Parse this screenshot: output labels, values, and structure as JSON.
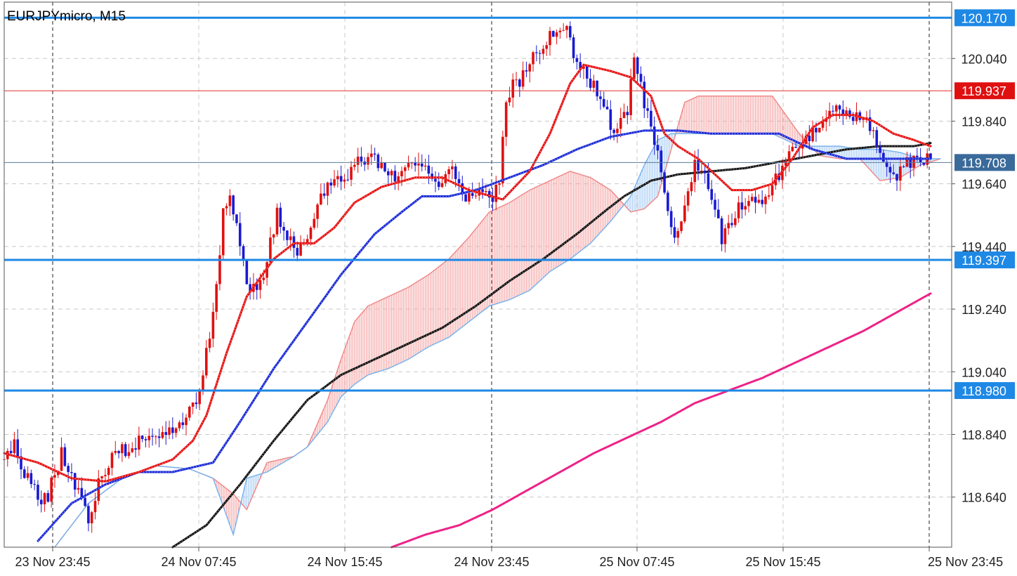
{
  "header": {
    "symbol_timeframe": "EURJPYmicro, M15"
  },
  "colors": {
    "bull_candle": "#e01010",
    "bear_candle": "#1a1ad0",
    "ema_fast": "#e81010",
    "ema_mid": "#1a2ad8",
    "ema_slow": "#111111",
    "ema_long": "#ee2288",
    "cloud_bull": "#f5a8a8",
    "cloud_bear": "#a8cdf5",
    "hline": "#1e88e5",
    "price_line": "#e03030",
    "bid_line": "#5a7a9a"
  },
  "chart_data": {
    "type": "candlestick",
    "symbol": "EURJPYmicro",
    "timeframe": "M15",
    "y_range": [
      118.48,
      120.22
    ],
    "y_ticks": [
      "120.040",
      "119.840",
      "119.640",
      "119.440",
      "119.240",
      "119.040",
      "118.840",
      "118.640"
    ],
    "x_ticks": [
      "23 Nov 23:45",
      "24 Nov 07:45",
      "24 Nov 15:45",
      "24 Nov 23:45",
      "25 Nov 07:45",
      "25 Nov 15:45",
      "25 Nov 23:45"
    ],
    "grid": true,
    "horizontal_levels": [
      {
        "label": "120.170",
        "value": 120.17
      },
      {
        "label": "119.397",
        "value": 119.397
      },
      {
        "label": "118.980",
        "value": 118.98
      }
    ],
    "current_price": {
      "label": "119.937",
      "value": 119.937
    },
    "bid_price": {
      "label": "119.708",
      "value": 119.708
    },
    "anchors": [
      [
        0,
        118.76
      ],
      [
        4,
        118.8
      ],
      [
        8,
        118.7
      ],
      [
        12,
        118.62
      ],
      [
        14,
        118.65
      ],
      [
        18,
        118.78
      ],
      [
        20,
        118.72
      ],
      [
        24,
        118.64
      ],
      [
        26,
        118.56
      ],
      [
        30,
        118.72
      ],
      [
        34,
        118.77
      ],
      [
        38,
        118.8
      ],
      [
        42,
        118.82
      ],
      [
        46,
        118.84
      ],
      [
        50,
        118.85
      ],
      [
        54,
        118.88
      ],
      [
        58,
        118.95
      ],
      [
        62,
        119.15
      ],
      [
        64,
        119.3
      ],
      [
        66,
        119.55
      ],
      [
        68,
        119.6
      ],
      [
        70,
        119.5
      ],
      [
        74,
        119.28
      ],
      [
        78,
        119.35
      ],
      [
        82,
        119.55
      ],
      [
        84,
        119.48
      ],
      [
        86,
        119.45
      ],
      [
        88,
        119.4
      ],
      [
        90,
        119.45
      ],
      [
        94,
        119.58
      ],
      [
        98,
        119.65
      ],
      [
        102,
        119.65
      ],
      [
        106,
        119.72
      ],
      [
        110,
        119.72
      ],
      [
        114,
        119.68
      ],
      [
        118,
        119.65
      ],
      [
        122,
        119.7
      ],
      [
        126,
        119.68
      ],
      [
        130,
        119.65
      ],
      [
        134,
        119.7
      ],
      [
        138,
        119.6
      ],
      [
        140,
        119.58
      ],
      [
        142,
        119.6
      ],
      [
        146,
        119.6
      ],
      [
        148,
        119.65
      ],
      [
        150,
        119.9
      ],
      [
        152,
        119.95
      ],
      [
        154,
        119.97
      ],
      [
        158,
        120.05
      ],
      [
        162,
        120.1
      ],
      [
        166,
        120.12
      ],
      [
        168,
        120.15
      ],
      [
        170,
        120.02
      ],
      [
        174,
        119.98
      ],
      [
        178,
        119.92
      ],
      [
        182,
        119.8
      ],
      [
        186,
        119.88
      ],
      [
        188,
        120.05
      ],
      [
        190,
        119.95
      ],
      [
        194,
        119.75
      ],
      [
        196,
        119.7
      ],
      [
        198,
        119.55
      ],
      [
        200,
        119.45
      ],
      [
        204,
        119.62
      ],
      [
        206,
        119.7
      ],
      [
        208,
        119.68
      ],
      [
        210,
        119.62
      ],
      [
        212,
        119.58
      ],
      [
        214,
        119.45
      ],
      [
        216,
        119.5
      ],
      [
        218,
        119.55
      ],
      [
        222,
        119.6
      ],
      [
        226,
        119.58
      ],
      [
        230,
        119.65
      ],
      [
        234,
        119.72
      ],
      [
        238,
        119.78
      ],
      [
        242,
        119.8
      ],
      [
        246,
        119.85
      ],
      [
        248,
        119.88
      ],
      [
        250,
        119.85
      ],
      [
        254,
        119.85
      ],
      [
        258,
        119.82
      ],
      [
        262,
        119.7
      ],
      [
        266,
        119.65
      ],
      [
        268,
        119.7
      ],
      [
        272,
        119.72
      ],
      [
        275,
        119.72
      ]
    ],
    "ema_fast_anchors": [
      [
        0,
        118.78
      ],
      [
        10,
        118.75
      ],
      [
        20,
        118.7
      ],
      [
        30,
        118.69
      ],
      [
        40,
        118.72
      ],
      [
        50,
        118.76
      ],
      [
        56,
        118.82
      ],
      [
        60,
        118.9
      ],
      [
        66,
        119.1
      ],
      [
        72,
        119.28
      ],
      [
        80,
        119.4
      ],
      [
        86,
        119.45
      ],
      [
        92,
        119.45
      ],
      [
        98,
        119.5
      ],
      [
        104,
        119.58
      ],
      [
        112,
        119.63
      ],
      [
        122,
        119.66
      ],
      [
        130,
        119.66
      ],
      [
        138,
        119.62
      ],
      [
        148,
        119.59
      ],
      [
        156,
        119.68
      ],
      [
        162,
        119.8
      ],
      [
        168,
        119.96
      ],
      [
        172,
        120.02
      ],
      [
        180,
        120.0
      ],
      [
        186,
        119.98
      ],
      [
        192,
        119.92
      ],
      [
        196,
        119.8
      ],
      [
        200,
        119.76
      ],
      [
        206,
        119.72
      ],
      [
        212,
        119.66
      ],
      [
        216,
        119.62
      ],
      [
        222,
        119.62
      ],
      [
        228,
        119.64
      ],
      [
        234,
        119.72
      ],
      [
        240,
        119.82
      ],
      [
        246,
        119.86
      ],
      [
        252,
        119.86
      ],
      [
        258,
        119.84
      ],
      [
        264,
        119.8
      ],
      [
        270,
        119.78
      ],
      [
        275,
        119.76
      ]
    ],
    "ema_mid_anchors": [
      [
        10,
        118.5
      ],
      [
        20,
        118.62
      ],
      [
        30,
        118.68
      ],
      [
        40,
        118.72
      ],
      [
        50,
        118.72
      ],
      [
        62,
        118.75
      ],
      [
        70,
        118.88
      ],
      [
        80,
        119.05
      ],
      [
        90,
        119.2
      ],
      [
        100,
        119.35
      ],
      [
        110,
        119.48
      ],
      [
        118,
        119.55
      ],
      [
        124,
        119.6
      ],
      [
        132,
        119.6
      ],
      [
        140,
        119.62
      ],
      [
        150,
        119.66
      ],
      [
        160,
        119.7
      ],
      [
        170,
        119.75
      ],
      [
        180,
        119.79
      ],
      [
        190,
        119.81
      ],
      [
        200,
        119.81
      ],
      [
        210,
        119.8
      ],
      [
        220,
        119.8
      ],
      [
        230,
        119.8
      ],
      [
        240,
        119.75
      ],
      [
        250,
        119.72
      ],
      [
        262,
        119.72
      ],
      [
        275,
        119.72
      ]
    ],
    "ema_slow_anchors": [
      [
        50,
        118.48
      ],
      [
        60,
        118.55
      ],
      [
        70,
        118.68
      ],
      [
        80,
        118.82
      ],
      [
        90,
        118.95
      ],
      [
        100,
        119.03
      ],
      [
        110,
        119.08
      ],
      [
        120,
        119.13
      ],
      [
        130,
        119.18
      ],
      [
        140,
        119.25
      ],
      [
        150,
        119.33
      ],
      [
        160,
        119.4
      ],
      [
        170,
        119.48
      ],
      [
        178,
        119.55
      ],
      [
        184,
        119.6
      ],
      [
        192,
        119.65
      ],
      [
        200,
        119.67
      ],
      [
        210,
        119.68
      ],
      [
        220,
        119.69
      ],
      [
        230,
        119.71
      ],
      [
        240,
        119.73
      ],
      [
        250,
        119.75
      ],
      [
        260,
        119.76
      ],
      [
        270,
        119.76
      ],
      [
        275,
        119.77
      ]
    ],
    "ema_long_anchors": [
      [
        115,
        118.48
      ],
      [
        125,
        118.52
      ],
      [
        135,
        118.55
      ],
      [
        145,
        118.6
      ],
      [
        155,
        118.66
      ],
      [
        165,
        118.72
      ],
      [
        175,
        118.78
      ],
      [
        185,
        118.83
      ],
      [
        195,
        118.88
      ],
      [
        205,
        118.94
      ],
      [
        215,
        118.98
      ],
      [
        225,
        119.02
      ],
      [
        235,
        119.07
      ],
      [
        245,
        119.12
      ],
      [
        255,
        119.17
      ],
      [
        265,
        119.23
      ],
      [
        275,
        119.29
      ]
    ],
    "cloud_span_a_anchors": [
      [
        15,
        118.48
      ],
      [
        25,
        118.62
      ],
      [
        35,
        118.7
      ],
      [
        45,
        118.74
      ],
      [
        55,
        118.73
      ],
      [
        62,
        118.7
      ],
      [
        68,
        118.65
      ],
      [
        72,
        118.6
      ],
      [
        78,
        118.75
      ],
      [
        86,
        118.77
      ],
      [
        90,
        118.8
      ],
      [
        96,
        118.95
      ],
      [
        100,
        119.08
      ],
      [
        104,
        119.2
      ],
      [
        108,
        119.25
      ],
      [
        114,
        119.28
      ],
      [
        120,
        119.31
      ],
      [
        126,
        119.35
      ],
      [
        132,
        119.4
      ],
      [
        138,
        119.47
      ],
      [
        144,
        119.55
      ],
      [
        150,
        119.58
      ],
      [
        156,
        119.62
      ],
      [
        162,
        119.65
      ],
      [
        168,
        119.68
      ],
      [
        174,
        119.66
      ],
      [
        180,
        119.62
      ],
      [
        186,
        119.55
      ],
      [
        190,
        119.56
      ],
      [
        194,
        119.6
      ],
      [
        198,
        119.75
      ],
      [
        202,
        119.9
      ],
      [
        206,
        119.92
      ],
      [
        212,
        119.92
      ],
      [
        218,
        119.92
      ],
      [
        224,
        119.92
      ],
      [
        228,
        119.92
      ],
      [
        232,
        119.86
      ],
      [
        236,
        119.8
      ],
      [
        242,
        119.73
      ],
      [
        248,
        119.72
      ],
      [
        254,
        119.72
      ],
      [
        260,
        119.65
      ],
      [
        266,
        119.66
      ],
      [
        272,
        119.7
      ],
      [
        278,
        119.72
      ]
    ],
    "cloud_span_b_anchors": [
      [
        15,
        118.48
      ],
      [
        25,
        118.62
      ],
      [
        35,
        118.7
      ],
      [
        45,
        118.74
      ],
      [
        55,
        118.73
      ],
      [
        62,
        118.7
      ],
      [
        68,
        118.52
      ],
      [
        72,
        118.7
      ],
      [
        78,
        118.72
      ],
      [
        86,
        118.77
      ],
      [
        90,
        118.8
      ],
      [
        96,
        118.88
      ],
      [
        100,
        118.96
      ],
      [
        104,
        119.0
      ],
      [
        108,
        119.03
      ],
      [
        114,
        119.05
      ],
      [
        120,
        119.08
      ],
      [
        126,
        119.12
      ],
      [
        132,
        119.15
      ],
      [
        138,
        119.2
      ],
      [
        144,
        119.25
      ],
      [
        150,
        119.27
      ],
      [
        156,
        119.3
      ],
      [
        162,
        119.36
      ],
      [
        168,
        119.4
      ],
      [
        174,
        119.45
      ],
      [
        180,
        119.52
      ],
      [
        186,
        119.6
      ],
      [
        190,
        119.7
      ],
      [
        194,
        119.78
      ],
      [
        198,
        119.8
      ],
      [
        202,
        119.8
      ],
      [
        206,
        119.8
      ],
      [
        212,
        119.8
      ],
      [
        218,
        119.8
      ],
      [
        224,
        119.8
      ],
      [
        228,
        119.8
      ],
      [
        232,
        119.78
      ],
      [
        236,
        119.76
      ],
      [
        242,
        119.76
      ],
      [
        248,
        119.76
      ],
      [
        254,
        119.75
      ],
      [
        260,
        119.75
      ],
      [
        266,
        119.74
      ],
      [
        272,
        119.72
      ],
      [
        278,
        119.72
      ]
    ]
  }
}
